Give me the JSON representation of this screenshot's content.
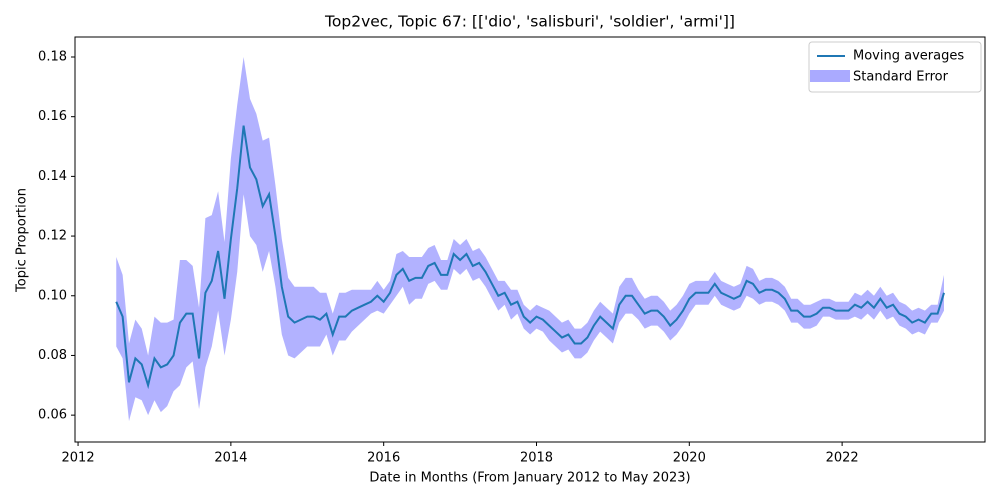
{
  "chart_data": {
    "type": "line",
    "title": "Top2vec, Topic 67: [['dio', 'salisburi', 'soldier', 'armi']]",
    "x_label": "Date in Months (From January 2012 to May 2023)",
    "y_label": "Topic Proportion",
    "x": [
      "2012-07",
      "2012-08",
      "2012-09",
      "2012-10",
      "2012-11",
      "2012-12",
      "2013-01",
      "2013-02",
      "2013-03",
      "2013-04",
      "2013-05",
      "2013-06",
      "2013-07",
      "2013-08",
      "2013-09",
      "2013-10",
      "2013-11",
      "2013-12",
      "2014-01",
      "2014-02",
      "2014-03",
      "2014-04",
      "2014-05",
      "2014-06",
      "2014-07",
      "2014-08",
      "2014-09",
      "2014-10",
      "2014-11",
      "2014-12",
      "2015-01",
      "2015-02",
      "2015-03",
      "2015-04",
      "2015-05",
      "2015-06",
      "2015-07",
      "2015-08",
      "2015-09",
      "2015-10",
      "2015-11",
      "2015-12",
      "2016-01",
      "2016-02",
      "2016-03",
      "2016-04",
      "2016-05",
      "2016-06",
      "2016-07",
      "2016-08",
      "2016-09",
      "2016-10",
      "2016-11",
      "2016-12",
      "2017-01",
      "2017-02",
      "2017-03",
      "2017-04",
      "2017-05",
      "2017-06",
      "2017-07",
      "2017-08",
      "2017-09",
      "2017-10",
      "2017-11",
      "2017-12",
      "2018-01",
      "2018-02",
      "2018-03",
      "2018-04",
      "2018-05",
      "2018-06",
      "2018-07",
      "2018-08",
      "2018-09",
      "2018-10",
      "2018-11",
      "2018-12",
      "2019-01",
      "2019-02",
      "2019-03",
      "2019-04",
      "2019-05",
      "2019-06",
      "2019-07",
      "2019-08",
      "2019-09",
      "2019-10",
      "2019-11",
      "2019-12",
      "2020-01",
      "2020-02",
      "2020-03",
      "2020-04",
      "2020-05",
      "2020-06",
      "2020-07",
      "2020-08",
      "2020-09",
      "2020-10",
      "2020-11",
      "2020-12",
      "2021-01",
      "2021-02",
      "2021-03",
      "2021-04",
      "2021-05",
      "2021-06",
      "2021-07",
      "2021-08",
      "2021-09",
      "2021-10",
      "2021-11",
      "2021-12",
      "2022-01",
      "2022-02",
      "2022-03",
      "2022-04",
      "2022-05",
      "2022-06",
      "2022-07",
      "2022-08",
      "2022-09",
      "2022-10",
      "2022-11",
      "2022-12",
      "2023-01",
      "2023-02",
      "2023-03",
      "2023-04",
      "2023-05"
    ],
    "series": [
      {
        "name": "Moving averages",
        "color": "#1f77b4",
        "values": [
          0.098,
          0.093,
          0.071,
          0.079,
          0.077,
          0.07,
          0.079,
          0.076,
          0.077,
          0.08,
          0.091,
          0.094,
          0.094,
          0.079,
          0.101,
          0.105,
          0.115,
          0.099,
          0.119,
          0.136,
          0.157,
          0.143,
          0.139,
          0.13,
          0.134,
          0.12,
          0.103,
          0.093,
          0.091,
          0.092,
          0.093,
          0.093,
          0.092,
          0.094,
          0.087,
          0.093,
          0.093,
          0.095,
          0.096,
          0.097,
          0.098,
          0.1,
          0.098,
          0.101,
          0.107,
          0.109,
          0.105,
          0.106,
          0.106,
          0.11,
          0.111,
          0.107,
          0.107,
          0.114,
          0.112,
          0.114,
          0.11,
          0.111,
          0.108,
          0.104,
          0.1,
          0.101,
          0.097,
          0.098,
          0.093,
          0.091,
          0.093,
          0.092,
          0.09,
          0.088,
          0.086,
          0.087,
          0.084,
          0.084,
          0.086,
          0.09,
          0.093,
          0.091,
          0.089,
          0.097,
          0.1,
          0.1,
          0.097,
          0.094,
          0.095,
          0.095,
          0.093,
          0.09,
          0.092,
          0.095,
          0.099,
          0.101,
          0.101,
          0.101,
          0.104,
          0.101,
          0.1,
          0.099,
          0.1,
          0.105,
          0.104,
          0.101,
          0.102,
          0.102,
          0.101,
          0.099,
          0.095,
          0.095,
          0.093,
          0.093,
          0.094,
          0.096,
          0.096,
          0.095,
          0.095,
          0.095,
          0.097,
          0.096,
          0.098,
          0.096,
          0.099,
          0.096,
          0.097,
          0.094,
          0.093,
          0.091,
          0.092,
          0.091,
          0.094,
          0.094,
          0.101
        ],
        "error_name": "Standard Error",
        "error_color": "#aaaaff",
        "errors": [
          0.015,
          0.014,
          0.013,
          0.013,
          0.012,
          0.01,
          0.014,
          0.015,
          0.014,
          0.012,
          0.021,
          0.018,
          0.016,
          0.017,
          0.025,
          0.022,
          0.02,
          0.019,
          0.027,
          0.028,
          0.023,
          0.023,
          0.022,
          0.022,
          0.019,
          0.017,
          0.016,
          0.013,
          0.012,
          0.011,
          0.01,
          0.01,
          0.009,
          0.007,
          0.007,
          0.008,
          0.008,
          0.007,
          0.006,
          0.005,
          0.004,
          0.005,
          0.004,
          0.004,
          0.007,
          0.006,
          0.008,
          0.007,
          0.007,
          0.006,
          0.006,
          0.005,
          0.005,
          0.005,
          0.005,
          0.005,
          0.005,
          0.005,
          0.005,
          0.005,
          0.005,
          0.004,
          0.005,
          0.004,
          0.004,
          0.004,
          0.004,
          0.004,
          0.005,
          0.005,
          0.005,
          0.005,
          0.005,
          0.005,
          0.005,
          0.005,
          0.005,
          0.005,
          0.005,
          0.006,
          0.006,
          0.006,
          0.005,
          0.005,
          0.005,
          0.005,
          0.005,
          0.005,
          0.005,
          0.005,
          0.005,
          0.004,
          0.004,
          0.004,
          0.004,
          0.004,
          0.004,
          0.004,
          0.004,
          0.005,
          0.005,
          0.004,
          0.004,
          0.004,
          0.004,
          0.004,
          0.004,
          0.004,
          0.004,
          0.004,
          0.004,
          0.003,
          0.003,
          0.003,
          0.003,
          0.003,
          0.004,
          0.004,
          0.004,
          0.004,
          0.004,
          0.004,
          0.004,
          0.004,
          0.004,
          0.004,
          0.004,
          0.004,
          0.003,
          0.003,
          0.006
        ]
      }
    ],
    "xlim": [
      2011.96,
      2023.87
    ],
    "xticks": [
      2012,
      2014,
      2016,
      2018,
      2020,
      2022
    ],
    "ylim": [
      0.051,
      0.1867
    ],
    "yticks": [
      0.06,
      0.08,
      {
        "value": 0.1,
        "label": "0.10"
      },
      0.12,
      0.14,
      0.16,
      0.18
    ],
    "legend": "upper right"
  }
}
